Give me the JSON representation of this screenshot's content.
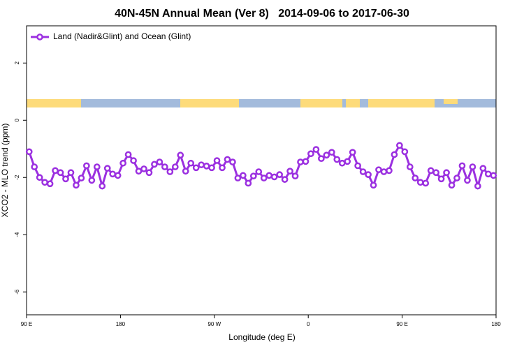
{
  "chart_data": {
    "type": "line",
    "title": "40N-45N Annual Mean (Ver 8)   2014-09-06 to 2017-06-30",
    "xlabel": "Longitude (deg E)",
    "ylabel": "XCO2 - MLO trend (ppm)",
    "xlim": [
      90,
      540
    ],
    "xticks": [
      {
        "value": 90,
        "label": "90 E"
      },
      {
        "value": 180,
        "label": "180"
      },
      {
        "value": 270,
        "label": "90 W"
      },
      {
        "value": 360,
        "label": "0"
      },
      {
        "value": 450,
        "label": "90 E"
      },
      {
        "value": 540,
        "label": "180"
      }
    ],
    "ylim": [
      -6.8,
      3.3
    ],
    "yticks": [
      -6,
      -4,
      -2,
      0,
      2
    ],
    "legend": "upper left",
    "x": [
      92.5,
      97.5,
      102.5,
      107.5,
      112.5,
      117.5,
      122.5,
      127.5,
      132.5,
      137.5,
      142.5,
      147.5,
      152.5,
      157.5,
      162.5,
      167.5,
      172.5,
      177.5,
      182.5,
      187.5,
      192.5,
      197.5,
      202.5,
      207.5,
      212.5,
      217.5,
      222.5,
      227.5,
      232.5,
      237.5,
      242.5,
      247.5,
      252.5,
      257.5,
      262.5,
      267.5,
      272.5,
      277.5,
      282.5,
      287.5,
      292.5,
      297.5,
      302.5,
      307.5,
      312.5,
      317.5,
      322.5,
      327.5,
      332.5,
      337.5,
      342.5,
      347.5,
      352.5,
      357.5,
      362.5,
      367.5,
      372.5,
      377.5,
      382.5,
      387.5,
      392.5,
      397.5,
      402.5,
      407.5,
      412.5,
      417.5,
      422.5,
      427.5,
      432.5,
      437.5,
      442.5,
      447.5,
      452.5,
      457.5,
      462.5,
      467.5,
      472.5,
      477.5,
      482.5,
      487.5,
      492.5,
      497.5,
      502.5,
      507.5,
      512.5,
      517.5,
      522.5,
      527.5,
      532.5,
      537.5
    ],
    "series": [
      {
        "name": "Land (Nadir&Glint) and Ocean (Glint)",
        "color": "#9b30e0",
        "values": [
          -1.1,
          -1.63,
          -2.0,
          -2.17,
          -2.22,
          -1.76,
          -1.83,
          -2.05,
          -1.83,
          -2.27,
          -2.02,
          -1.59,
          -2.1,
          -1.63,
          -2.3,
          -1.68,
          -1.88,
          -1.93,
          -1.5,
          -1.2,
          -1.41,
          -1.78,
          -1.7,
          -1.83,
          -1.54,
          -1.46,
          -1.63,
          -1.8,
          -1.63,
          -1.22,
          -1.78,
          -1.5,
          -1.66,
          -1.56,
          -1.6,
          -1.66,
          -1.41,
          -1.66,
          -1.37,
          -1.46,
          -2.02,
          -1.93,
          -2.2,
          -1.95,
          -1.8,
          -2.02,
          -1.93,
          -1.98,
          -1.9,
          -2.07,
          -1.78,
          -1.95,
          -1.46,
          -1.44,
          -1.17,
          -1.02,
          -1.34,
          -1.22,
          -1.12,
          -1.37,
          -1.5,
          -1.44,
          -1.12,
          -1.59,
          -1.8,
          -1.9,
          -2.27,
          -1.73,
          -1.8,
          -1.76,
          -1.2,
          -0.88,
          -1.1,
          -1.63,
          -2.02,
          -2.17,
          -2.2,
          -1.76,
          -1.83,
          -2.05,
          -1.83,
          -2.27,
          -2.02,
          -1.59,
          -2.1,
          -1.63,
          -2.3,
          -1.68,
          -1.88,
          -1.93
        ]
      }
    ]
  }
}
